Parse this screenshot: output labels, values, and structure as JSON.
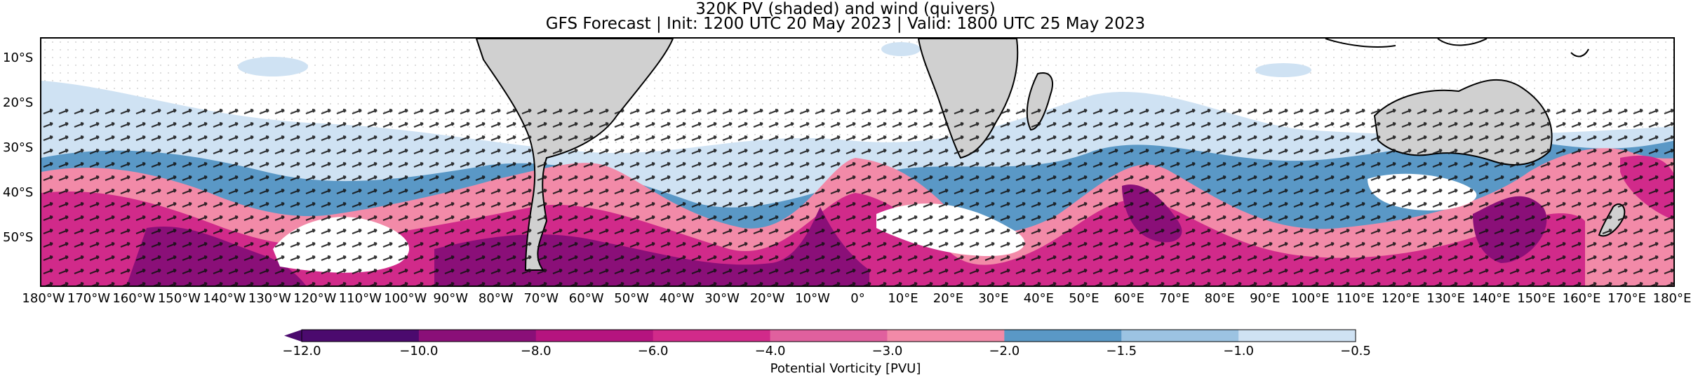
{
  "title_line1": "320K PV (shaded) and wind (quivers)",
  "title_line2": "GFS Forecast | Init: 1200 UTC 20 May 2023 | Valid: 1800 UTC 25 May 2023",
  "lat_labels": [
    "10°S",
    "20°S",
    "30°S",
    "40°S",
    "50°S"
  ],
  "lon_labels": [
    "180°W",
    "170°W",
    "160°W",
    "150°W",
    "140°W",
    "130°W",
    "120°W",
    "110°W",
    "100°W",
    "90°W",
    "80°W",
    "70°W",
    "60°W",
    "50°W",
    "40°W",
    "30°W",
    "20°W",
    "10°W",
    "0°",
    "10°E",
    "20°E",
    "30°E",
    "40°E",
    "50°E",
    "60°E",
    "70°E",
    "80°E",
    "90°E",
    "100°E",
    "110°E",
    "120°E",
    "130°E",
    "140°E",
    "150°E",
    "160°E",
    "170°E",
    "180°E"
  ],
  "colorbar": {
    "title": "Potential Vorticity [PVU]",
    "tick_labels": [
      "−12.0",
      "−10.0",
      "−8.0",
      "−6.0",
      "−4.0",
      "−3.0",
      "−2.0",
      "−1.5",
      "−1.0",
      "−0.5"
    ],
    "colors": [
      "#4b0a6e",
      "#8a0f78",
      "#b5147f",
      "#d12a8a",
      "#e0609e",
      "#f28aa8",
      "#5a98c6",
      "#9cc3e2",
      "#cfe2f3"
    ]
  },
  "colors": {
    "land": "#d0d0d0",
    "pv_light_blue": "#cfe2f3",
    "pv_mid_blue": "#5a98c6",
    "pv_pink": "#f28aa8",
    "pv_magenta": "#d12a8a",
    "pv_purple": "#8a0f78"
  }
}
